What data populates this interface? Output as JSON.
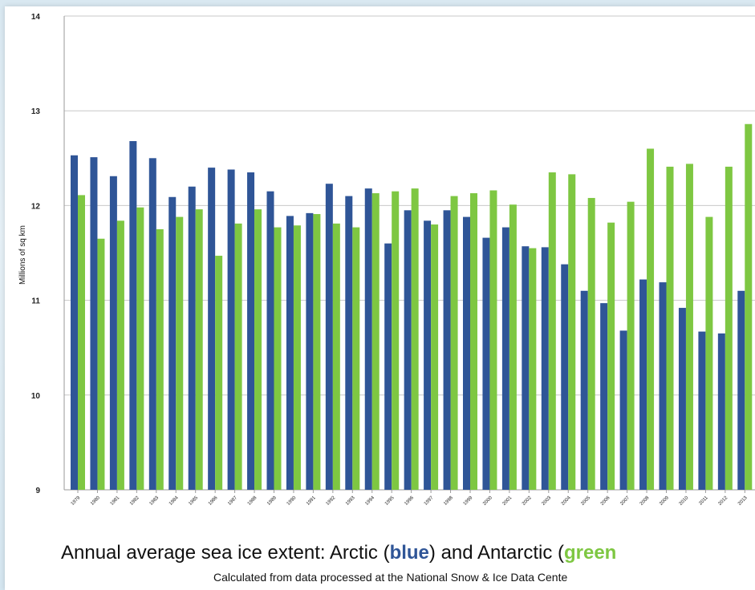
{
  "chart_data": {
    "type": "bar",
    "title_parts": {
      "prefix": "Annual average sea ice extent: Arctic (",
      "blue": "blue",
      "middle": ") and Antarctic (",
      "green": "green"
    },
    "subtitle": "Calculated from data processed at the National Snow & Ice Data Cente",
    "ylabel": "Millions of sq km",
    "xlabel": "",
    "ylim": [
      9,
      14
    ],
    "yticks": [
      "9",
      "10",
      "11",
      "12",
      "13",
      "14"
    ],
    "grid": true,
    "categories": [
      "1979",
      "1980",
      "1981",
      "1982",
      "1983",
      "1984",
      "1985",
      "1986",
      "1987",
      "1988",
      "1989",
      "1990",
      "1991",
      "1992",
      "1993",
      "1994",
      "1995",
      "1996",
      "1997",
      "1998",
      "1999",
      "2000",
      "2001",
      "2002",
      "2003",
      "2004",
      "2005",
      "2006",
      "2007",
      "2008",
      "2009",
      "2010",
      "2011",
      "2012",
      "2013"
    ],
    "series": [
      {
        "color": "#2f5597",
        "values": [
          12.53,
          12.51,
          12.31,
          12.68,
          12.5,
          12.09,
          12.2,
          12.4,
          12.38,
          12.35,
          12.15,
          11.89,
          11.92,
          12.23,
          12.1,
          12.18,
          11.6,
          11.95,
          11.84,
          11.95,
          11.88,
          11.66,
          11.77,
          11.57,
          11.56,
          11.38,
          11.1,
          10.97,
          10.68,
          11.22,
          11.19,
          10.92,
          10.67,
          10.65,
          11.1
        ]
      },
      {
        "color": "#7ec742",
        "values": [
          12.11,
          11.65,
          11.84,
          11.98,
          11.75,
          11.88,
          11.96,
          11.47,
          11.81,
          11.96,
          11.77,
          11.79,
          11.91,
          11.81,
          11.77,
          12.13,
          12.15,
          12.18,
          11.8,
          12.1,
          12.13,
          12.16,
          12.01,
          11.55,
          12.35,
          12.33,
          12.08,
          11.82,
          12.04,
          12.6,
          12.41,
          12.44,
          11.88,
          12.41,
          12.86
        ]
      }
    ]
  }
}
